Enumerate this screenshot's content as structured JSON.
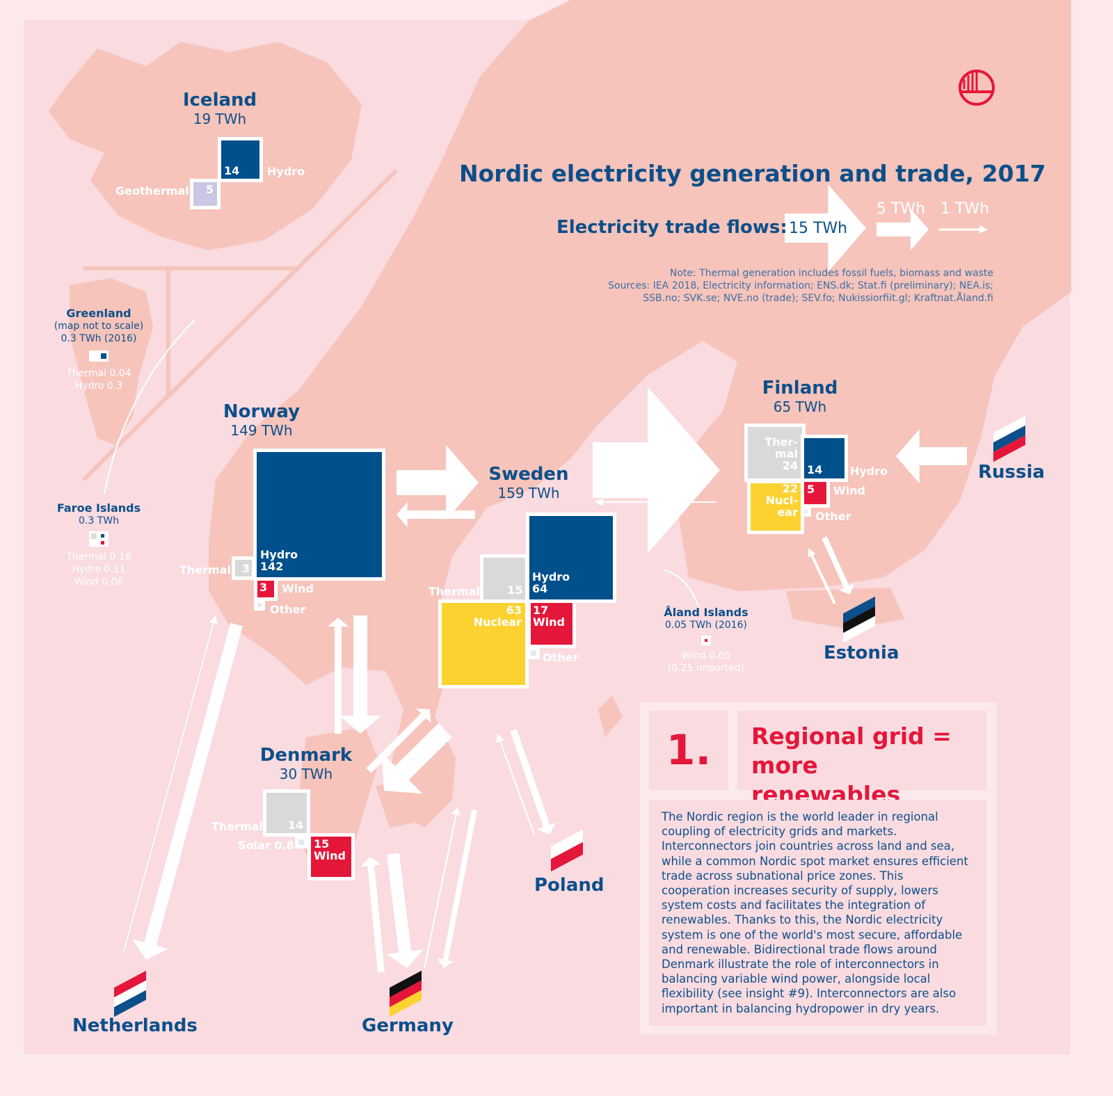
{
  "title": "Nordic electricity generation and trade, 2017",
  "legend": {
    "label": "Electricity trade flows:",
    "sizes": [
      "15 TWh",
      "5 TWh",
      "1 TWh"
    ]
  },
  "note": "Note: Thermal generation includes fossil fuels, biomass and waste",
  "sources": [
    "Sources: IEA 2018, Electricity information; ENS.dk; Stat.fi (preliminary); NEA.is;",
    "SSB.no; SVK.se; NVE.no (trade); SEV.fo; Nukissiorfiit.gl; Kraftnat.Åland.fi"
  ],
  "colors": {
    "hydro": "#00508c",
    "wind": "#e4173a",
    "nuclear": "#fcd230",
    "thermal": "#d9d9d9",
    "geothermal": "#c9c7e3",
    "other": "#e2e8f4",
    "land": "#f6c4bb",
    "sea": "#f9dbe0"
  },
  "logo": "nordic-council-swan-icon",
  "iceland": {
    "name": "Iceland",
    "total": "19 TWh",
    "hydro": "14",
    "hydro_label": "Hydro",
    "geo": "5",
    "geo_label": "Geothermal"
  },
  "greenland": {
    "name": "Greenland",
    "sub": "(map not to scale)",
    "total": "0.3 TWh (2016)",
    "lines": [
      "Thermal 0.04",
      "Hydro 0.3"
    ]
  },
  "faroe": {
    "name": "Faroe Islands",
    "total": "0.3 TWh",
    "lines": [
      "Thermal 0.16",
      "Hydro 0.11",
      "Wind 0.06"
    ]
  },
  "norway": {
    "name": "Norway",
    "total": "149 TWh",
    "hydro_label": "Hydro",
    "hydro": "142",
    "thermal_label": "Thermal",
    "thermal": "3",
    "wind": "3",
    "wind_label": "Wind",
    "other_label": "Other"
  },
  "sweden": {
    "name": "Sweden",
    "total": "159 TWh",
    "hydro_label": "Hydro",
    "hydro": "64",
    "thermal_label": "Thermal",
    "thermal": "15",
    "nuclear": "63",
    "nuclear_label": "Nuclear",
    "wind": "17",
    "wind_label": "Wind",
    "other_label": "Other"
  },
  "finland": {
    "name": "Finland",
    "total": "65 TWh",
    "thermal_l1": "Ther-",
    "thermal_l2": "mal",
    "thermal": "24",
    "hydro": "14",
    "hydro_label": "Hydro",
    "nuclear": "22",
    "nuclear_l1": "Nucl-",
    "nuclear_l2": "ear",
    "wind": "5",
    "wind_label": "Wind",
    "other_label": "Other"
  },
  "denmark": {
    "name": "Denmark",
    "total": "30 TWh",
    "thermal_label": "Thermal",
    "thermal": "14",
    "solar_label": "Solar 0.8",
    "wind": "15",
    "wind_label": "Wind"
  },
  "aland": {
    "name": "Åland Islands",
    "total": "0.05 TWh (2016)",
    "lines": [
      "Wind 0.05",
      "(0.25 imported)"
    ]
  },
  "neighbors": {
    "russia": "Russia",
    "estonia": "Estonia",
    "poland": "Poland",
    "germany": "Germany",
    "netherlands": "Netherlands"
  },
  "insight": {
    "number": "1.",
    "title_l1": "Regional grid =",
    "title_l2": "more renewables",
    "body": "The Nordic region is the world leader in regional coupling of electricity grids and markets. Interconnectors join countries across land and sea, while a common Nordic spot market ensures efficient trade across subnational price zones. This cooperation increases security of supply, lowers system costs and facilitates the integration of renewables. Thanks to this, the Nordic electricity system is one of the world's most secure, affordable and renewable. Bidirectional trade flows around Denmark illustrate the role of interconnectors in balancing variable wind power, alongside local flexibility (see insight #9). Interconnectors are also important in balancing hydropower in dry years."
  }
}
